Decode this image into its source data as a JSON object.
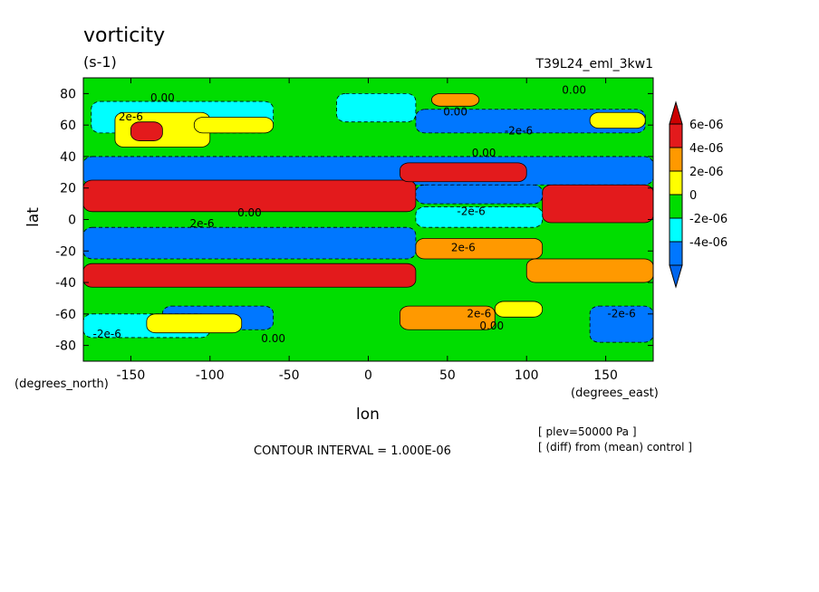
{
  "chart_data": {
    "type": "heatmap",
    "title": "vorticity",
    "subtitle": "(s-1)",
    "experiment": "T39L24_eml_3kw1",
    "xlabel": "lon",
    "ylabel": "lat",
    "x_units": "(degrees_east)",
    "y_units": "(degrees_north)",
    "xlim": [
      -180,
      180
    ],
    "ylim": [
      -90,
      90
    ],
    "x_ticks": [
      -150,
      -100,
      -50,
      0,
      50,
      100,
      150
    ],
    "x_tick_labels": [
      "-150",
      "-100",
      "-50",
      "0",
      "50",
      "100",
      "150"
    ],
    "y_ticks": [
      -80,
      -60,
      -40,
      -20,
      0,
      20,
      40,
      60,
      80
    ],
    "y_tick_labels": [
      "-80",
      "-60",
      "-40",
      "-20",
      "0",
      "20",
      "40",
      "60",
      "80"
    ],
    "contour_interval_text": "CONTOUR INTERVAL = 1.000E-06",
    "notes": [
      "[ plev=50000 Pa ]",
      "[ (diff) from (mean) control ]"
    ],
    "colorbar": {
      "labels": [
        "6e-06",
        "4e-06",
        "2e-06",
        "0",
        "-2e-06",
        "-4e-06"
      ],
      "levels": [
        6e-06,
        4e-06,
        2e-06,
        0,
        -2e-06,
        -4e-06
      ],
      "colors_top_to_bottom": [
        "#e31a1c",
        "#ff9900",
        "#ffff00",
        "#00dd00",
        "#00ffff",
        "#0077ff"
      ]
    },
    "contour_labels": [
      {
        "text": "0.00",
        "lon": -130,
        "lat": 75
      },
      {
        "text": "2e-6",
        "lon": -150,
        "lat": 63
      },
      {
        "text": "0.00",
        "lon": 55,
        "lat": 66
      },
      {
        "text": "-2e-6",
        "lon": 95,
        "lat": 54
      },
      {
        "text": "0.00",
        "lon": 130,
        "lat": 80
      },
      {
        "text": "0.00",
        "lon": 73,
        "lat": 40
      },
      {
        "text": "0.00",
        "lon": -75,
        "lat": 2
      },
      {
        "text": "-2e-6",
        "lon": 65,
        "lat": 3
      },
      {
        "text": "2e-6",
        "lon": -105,
        "lat": -5
      },
      {
        "text": "2e-6",
        "lon": 60,
        "lat": -20
      },
      {
        "text": "-2e-6",
        "lon": -165,
        "lat": -75
      },
      {
        "text": "0.00",
        "lon": -60,
        "lat": -78
      },
      {
        "text": "2e-6",
        "lon": 70,
        "lat": -62
      },
      {
        "text": "0.00",
        "lon": 78,
        "lat": -70
      },
      {
        "text": "-2e-6",
        "lon": 160,
        "lat": -62
      }
    ],
    "regions": [
      {
        "lon": [
          -180,
          180
        ],
        "lat": [
          -90,
          90
        ],
        "level": 0
      },
      {
        "lon": [
          -175,
          -60
        ],
        "lat": [
          55,
          75
        ],
        "level": -2e-06
      },
      {
        "lon": [
          30,
          175
        ],
        "lat": [
          55,
          70
        ],
        "level": -4e-06
      },
      {
        "lon": [
          -20,
          30
        ],
        "lat": [
          62,
          80
        ],
        "level": -2e-06
      },
      {
        "lon": [
          -130,
          -60
        ],
        "lat": [
          -70,
          -55
        ],
        "level": -4e-06
      },
      {
        "lon": [
          -180,
          -100
        ],
        "lat": [
          -75,
          -60
        ],
        "level": -2e-06
      },
      {
        "lon": [
          140,
          180
        ],
        "lat": [
          -78,
          -55
        ],
        "level": -4e-06
      },
      {
        "lon": [
          -160,
          -100
        ],
        "lat": [
          46,
          68
        ],
        "level": 2e-06
      },
      {
        "lon": [
          -150,
          -130
        ],
        "lat": [
          50,
          62
        ],
        "level": 6e-06
      },
      {
        "lon": [
          -110,
          -60
        ],
        "lat": [
          55,
          65
        ],
        "level": 2e-06
      },
      {
        "lon": [
          40,
          70
        ],
        "lat": [
          72,
          80
        ],
        "level": 4e-06
      },
      {
        "lon": [
          140,
          175
        ],
        "lat": [
          58,
          68
        ],
        "level": 2e-06
      },
      {
        "lon": [
          -140,
          -80
        ],
        "lat": [
          -72,
          -60
        ],
        "level": 2e-06
      },
      {
        "lon": [
          20,
          80
        ],
        "lat": [
          -70,
          -55
        ],
        "level": 4e-06
      },
      {
        "lon": [
          80,
          110
        ],
        "lat": [
          -62,
          -52
        ],
        "level": 2e-06
      },
      {
        "lon": [
          -180,
          180
        ],
        "lat": [
          22,
          40
        ],
        "level": -4e-06
      },
      {
        "lon": [
          -180,
          30
        ],
        "lat": [
          5,
          25
        ],
        "level": 6e-06
      },
      {
        "lon": [
          20,
          100
        ],
        "lat": [
          24,
          36
        ],
        "level": 6e-06
      },
      {
        "lon": [
          110,
          180
        ],
        "lat": [
          -2,
          22
        ],
        "level": 6e-06
      },
      {
        "lon": [
          30,
          110
        ],
        "lat": [
          10,
          22
        ],
        "level": -4e-06
      },
      {
        "lon": [
          30,
          110
        ],
        "lat": [
          -5,
          8
        ],
        "level": -2e-06
      },
      {
        "lon": [
          -180,
          30
        ],
        "lat": [
          -25,
          -5
        ],
        "level": -4e-06
      },
      {
        "lon": [
          -180,
          30
        ],
        "lat": [
          -43,
          -28
        ],
        "level": 6e-06
      },
      {
        "lon": [
          30,
          110
        ],
        "lat": [
          -25,
          -12
        ],
        "level": 4e-06
      },
      {
        "lon": [
          100,
          180
        ],
        "lat": [
          -40,
          -25
        ],
        "level": 4e-06
      }
    ]
  }
}
